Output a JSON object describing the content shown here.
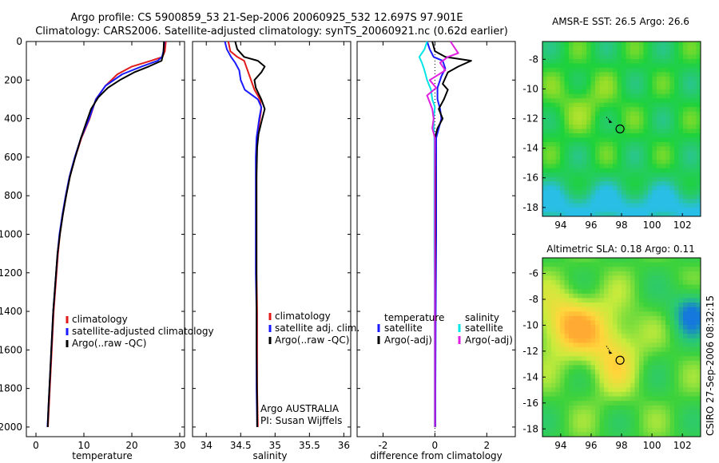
{
  "header": {
    "line1": "Argo profile: CS 5900859_53 21-Sep-2006 20060925_532 12.697S 97.901E",
    "line2": "Climatology: CARS2006. Satellite-adjusted climatology: synTS_20060921.nc (0.62d earlier)"
  },
  "side_label": "CSIRO 27-Sep-2006 08:32:15",
  "colors": {
    "red": "#e21a1a",
    "blue": "#1a1aff",
    "black": "#000000",
    "cyan": "#00e5e5",
    "magenta": "#e020e0"
  },
  "chart_data": [
    {
      "type": "line",
      "id": "temperature",
      "xlabel": "temperature",
      "ylabel": "",
      "xlim": [
        -2,
        31
      ],
      "ylim": [
        0,
        2050
      ],
      "xticks": [
        0,
        10,
        20,
        30
      ],
      "yticks": [
        0,
        200,
        400,
        600,
        800,
        1000,
        1200,
        1400,
        1600,
        1800,
        2000
      ],
      "legend": [
        "climatology",
        "satellite-adjusted climatology",
        "Argo(..raw -QC)"
      ],
      "series": [
        {
          "name": "climatology",
          "color": "red",
          "points": [
            [
              27.1,
              0
            ],
            [
              26.9,
              50
            ],
            [
              26.4,
              80
            ],
            [
              24,
              100
            ],
            [
              20,
              130
            ],
            [
              17,
              170
            ],
            [
              14.5,
              230
            ],
            [
              12.5,
              300
            ],
            [
              11.2,
              400
            ],
            [
              9.5,
              500
            ],
            [
              8.2,
              600
            ],
            [
              7.1,
              700
            ],
            [
              6.3,
              800
            ],
            [
              5.6,
              900
            ],
            [
              5.0,
              1000
            ],
            [
              4.6,
              1100
            ],
            [
              4.3,
              1200
            ],
            [
              4.0,
              1300
            ],
            [
              3.7,
              1400
            ],
            [
              3.5,
              1500
            ],
            [
              3.3,
              1600
            ],
            [
              3.1,
              1700
            ],
            [
              2.9,
              1800
            ],
            [
              2.7,
              1900
            ],
            [
              2.5,
              2000
            ]
          ]
        },
        {
          "name": "satellite-adjusted climatology",
          "color": "blue",
          "points": [
            [
              26.8,
              0
            ],
            [
              26.6,
              50
            ],
            [
              26.3,
              80
            ],
            [
              25.4,
              100
            ],
            [
              22,
              130
            ],
            [
              18,
              170
            ],
            [
              14.5,
              230
            ],
            [
              12.5,
              300
            ],
            [
              11.1,
              400
            ],
            [
              9.4,
              500
            ],
            [
              8.1,
              600
            ],
            [
              7.0,
              700
            ],
            [
              6.2,
              800
            ],
            [
              5.5,
              900
            ],
            [
              4.9,
              1000
            ],
            [
              4.5,
              1100
            ],
            [
              4.2,
              1200
            ],
            [
              3.9,
              1300
            ],
            [
              3.6,
              1400
            ],
            [
              3.4,
              1500
            ],
            [
              3.2,
              1600
            ],
            [
              3.0,
              1700
            ],
            [
              2.8,
              1800
            ],
            [
              2.6,
              1900
            ],
            [
              2.4,
              2000
            ]
          ]
        },
        {
          "name": "Argo(..raw -QC)",
          "color": "black",
          "points": [
            [
              26.7,
              0
            ],
            [
              26.6,
              60
            ],
            [
              26.2,
              100
            ],
            [
              23.5,
              130
            ],
            [
              20.5,
              160
            ],
            [
              17.5,
              200
            ],
            [
              15,
              240
            ],
            [
              13,
              290
            ],
            [
              11.5,
              350
            ],
            [
              10.5,
              420
            ],
            [
              9.4,
              500
            ],
            [
              8.2,
              600
            ],
            [
              7.1,
              700
            ],
            [
              6.3,
              800
            ],
            [
              5.6,
              900
            ],
            [
              5.0,
              1000
            ],
            [
              4.5,
              1100
            ],
            [
              4.2,
              1200
            ],
            [
              3.9,
              1300
            ],
            [
              3.6,
              1400
            ],
            [
              3.4,
              1500
            ],
            [
              3.2,
              1600
            ],
            [
              3.0,
              1700
            ],
            [
              2.8,
              1800
            ],
            [
              2.6,
              1900
            ],
            [
              2.45,
              2000
            ]
          ]
        }
      ]
    },
    {
      "type": "line",
      "id": "salinity",
      "xlabel": "salinity",
      "ylabel": "",
      "xlim": [
        33.8,
        36.1
      ],
      "ylim": [
        0,
        2050
      ],
      "xticks": [
        34,
        34.5,
        35,
        35.5,
        36
      ],
      "legend": [
        "climatology",
        "satellite adj. clim.",
        "Argo(..raw -QC)"
      ],
      "annotation": [
        "Argo AUSTRALIA",
        "PI: Susan Wijffels"
      ],
      "series": [
        {
          "name": "climatology",
          "color": "red",
          "points": [
            [
              34.32,
              0
            ],
            [
              34.35,
              50
            ],
            [
              34.45,
              80
            ],
            [
              34.55,
              100
            ],
            [
              34.6,
              150
            ],
            [
              34.65,
              200
            ],
            [
              34.7,
              250
            ],
            [
              34.78,
              300
            ],
            [
              34.8,
              350
            ],
            [
              34.78,
              400
            ],
            [
              34.76,
              450
            ],
            [
              34.74,
              500
            ],
            [
              34.73,
              600
            ],
            [
              34.73,
              800
            ],
            [
              34.73,
              1000
            ],
            [
              34.73,
              1200
            ],
            [
              34.74,
              1400
            ],
            [
              34.74,
              1600
            ],
            [
              34.74,
              1800
            ],
            [
              34.75,
              2000
            ]
          ]
        },
        {
          "name": "satellite adj. clim.",
          "color": "blue",
          "points": [
            [
              34.27,
              0
            ],
            [
              34.3,
              40
            ],
            [
              34.36,
              80
            ],
            [
              34.42,
              110
            ],
            [
              34.48,
              150
            ],
            [
              34.5,
              200
            ],
            [
              34.56,
              250
            ],
            [
              34.75,
              300
            ],
            [
              34.8,
              340
            ],
            [
              34.77,
              400
            ],
            [
              34.75,
              450
            ],
            [
              34.73,
              500
            ],
            [
              34.72,
              600
            ],
            [
              34.72,
              800
            ],
            [
              34.72,
              1000
            ],
            [
              34.72,
              1200
            ],
            [
              34.73,
              1400
            ],
            [
              34.73,
              1600
            ],
            [
              34.73,
              1800
            ],
            [
              34.74,
              2000
            ]
          ]
        },
        {
          "name": "Argo(..raw -QC)",
          "color": "black",
          "points": [
            [
              34.42,
              0
            ],
            [
              34.45,
              40
            ],
            [
              34.55,
              80
            ],
            [
              34.75,
              100
            ],
            [
              34.85,
              130
            ],
            [
              34.8,
              160
            ],
            [
              34.7,
              200
            ],
            [
              34.72,
              240
            ],
            [
              34.8,
              300
            ],
            [
              34.85,
              350
            ],
            [
              34.8,
              420
            ],
            [
              34.76,
              480
            ],
            [
              34.74,
              550
            ],
            [
              34.73,
              700
            ],
            [
              34.73,
              1000
            ],
            [
              34.73,
              1300
            ],
            [
              34.73,
              1600
            ],
            [
              34.74,
              1900
            ],
            [
              34.74,
              2000
            ]
          ]
        }
      ]
    },
    {
      "type": "line",
      "id": "difference",
      "xlabel": "difference from climatology",
      "ylabel": "",
      "xlim": [
        -3,
        3.1
      ],
      "ylim": [
        0,
        2050
      ],
      "xticks": [
        -2,
        0,
        2
      ],
      "legend_left_title": "temperature",
      "legend_right_title": "salinity",
      "legend_left": [
        "satellite",
        "Argo(-adj)"
      ],
      "legend_right": [
        "satellite",
        "Argo(-adj)"
      ],
      "series": [
        {
          "name": "temperature satellite",
          "color": "blue",
          "points": [
            [
              -0.3,
              0
            ],
            [
              -0.2,
              40
            ],
            [
              -0.05,
              80
            ],
            [
              0.3,
              100
            ],
            [
              0.4,
              140
            ],
            [
              0.25,
              180
            ],
            [
              0.1,
              240
            ],
            [
              0.1,
              300
            ],
            [
              0.2,
              350
            ],
            [
              0.25,
              400
            ],
            [
              0.15,
              450
            ],
            [
              0.05,
              500
            ],
            [
              0.05,
              700
            ],
            [
              0.05,
              1000
            ],
            [
              0.03,
              1400
            ],
            [
              0.02,
              1800
            ],
            [
              0.02,
              2000
            ]
          ]
        },
        {
          "name": "temperature Argo(-adj)",
          "color": "black",
          "points": [
            [
              -0.1,
              0
            ],
            [
              0,
              50
            ],
            [
              0.4,
              80
            ],
            [
              1.4,
              100
            ],
            [
              0.9,
              130
            ],
            [
              0.5,
              160
            ],
            [
              0.3,
              220
            ],
            [
              0.5,
              250
            ],
            [
              0.35,
              300
            ],
            [
              0.15,
              350
            ],
            [
              0.3,
              400
            ],
            [
              0.1,
              450
            ],
            [
              0,
              500
            ],
            [
              0.02,
              700
            ],
            [
              0.02,
              1000
            ],
            [
              0.0,
              1400
            ],
            [
              0.0,
              1800
            ],
            [
              0.0,
              2000
            ]
          ]
        },
        {
          "name": "salinity satellite",
          "color": "cyan",
          "points": [
            [
              -0.3,
              0
            ],
            [
              -0.4,
              40
            ],
            [
              -0.6,
              80
            ],
            [
              -0.5,
              110
            ],
            [
              -0.4,
              150
            ],
            [
              -0.3,
              200
            ],
            [
              -0.15,
              250
            ],
            [
              -0.1,
              300
            ],
            [
              0,
              340
            ],
            [
              -0.05,
              400
            ],
            [
              -0.05,
              450
            ],
            [
              -0.02,
              500
            ],
            [
              -0.02,
              700
            ],
            [
              -0.02,
              1000
            ],
            [
              -0.01,
              1400
            ],
            [
              -0.01,
              1800
            ],
            [
              -0.01,
              2000
            ]
          ]
        },
        {
          "name": "salinity Argo(-adj)",
          "color": "magenta",
          "points": [
            [
              0.6,
              0
            ],
            [
              0.8,
              40
            ],
            [
              0.9,
              60
            ],
            [
              0.5,
              80
            ],
            [
              0.2,
              110
            ],
            [
              0.4,
              150
            ],
            [
              -0.2,
              200
            ],
            [
              0.05,
              240
            ],
            [
              -0.3,
              280
            ],
            [
              -0.1,
              350
            ],
            [
              -0.05,
              400
            ],
            [
              -0.1,
              450
            ],
            [
              0,
              500
            ],
            [
              0,
              700
            ],
            [
              0,
              1000
            ],
            [
              0,
              1400
            ],
            [
              0,
              1800
            ],
            [
              0,
              2000
            ]
          ]
        }
      ]
    },
    {
      "type": "heatmap",
      "id": "sst-map",
      "title": "AMSR-E SST: 26.5 Argo: 26.6",
      "xlim": [
        92.8,
        103.2
      ],
      "ylim": [
        -18.6,
        -6.8
      ],
      "xticks": [
        94,
        96,
        98,
        100,
        102
      ],
      "yticks": [
        -8,
        -10,
        -12,
        -14,
        -16,
        -18
      ],
      "argo_position": [
        97.9,
        -12.7
      ],
      "track": [
        [
          97.0,
          -11.9
        ],
        [
          97.3,
          -12.2
        ]
      ],
      "colormap": "sst"
    },
    {
      "type": "heatmap",
      "id": "sla-map",
      "title": "Altimetric SLA: 0.18 Argo: 0.11",
      "xlim": [
        92.8,
        103.2
      ],
      "ylim": [
        -18.6,
        -4.8
      ],
      "xticks": [
        94,
        96,
        98,
        100,
        102
      ],
      "yticks": [
        -6,
        -8,
        -10,
        -12,
        -14,
        -16,
        -18
      ],
      "argo_position": [
        97.9,
        -12.7
      ],
      "track": [
        [
          97.0,
          -11.6
        ],
        [
          97.3,
          -12.1
        ]
      ],
      "colormap": "sla"
    }
  ]
}
